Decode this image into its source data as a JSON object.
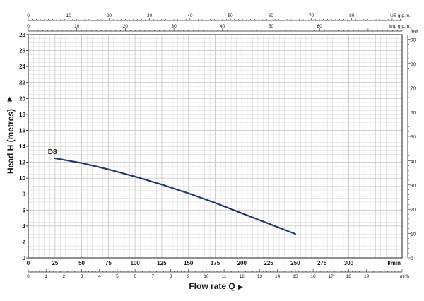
{
  "chart_data": {
    "type": "line",
    "xlabel": "Flow rate Q",
    "ylabel": "Head H (metres)",
    "xlim": [
      0,
      350
    ],
    "ylim": [
      0,
      28
    ],
    "grid": true,
    "x_unit": "l/min",
    "series": [
      {
        "name": "D8",
        "x": [
          25,
          50,
          75,
          100,
          125,
          150,
          175,
          200,
          225,
          250
        ],
        "y": [
          12.5,
          11.9,
          11.1,
          10.2,
          9.2,
          8.1,
          6.9,
          5.6,
          4.3,
          3.0
        ]
      }
    ],
    "top_axes": [
      {
        "unit": "US g.p.m.",
        "range": [
          0,
          92.46
        ],
        "ticks": [
          0,
          10,
          20,
          30,
          40,
          50,
          60,
          70,
          80
        ]
      },
      {
        "unit": "Imp g.p.m.",
        "range": [
          0,
          77.0
        ],
        "ticks": [
          0,
          10,
          20,
          30,
          40,
          50,
          60
        ]
      }
    ],
    "bottom_axis_m3h": {
      "unit": "m³/h",
      "range": [
        0,
        21
      ],
      "ticks": [
        0,
        1,
        2,
        3,
        4,
        5,
        6,
        7,
        8,
        9,
        10,
        11,
        12,
        13,
        14,
        15,
        16,
        17,
        18,
        19
      ]
    },
    "right_axis_feet": {
      "unit": "feet",
      "range": [
        0,
        91.86
      ],
      "ticks": [
        0,
        10,
        20,
        30,
        40,
        50,
        60,
        70,
        80,
        90
      ]
    },
    "x_ticks": [
      0,
      25,
      50,
      75,
      100,
      125,
      150,
      175,
      200,
      225,
      250,
      275,
      300
    ],
    "y_ticks": [
      0,
      2,
      4,
      6,
      8,
      10,
      12,
      14,
      16,
      18,
      20,
      22,
      24,
      26,
      28
    ],
    "colors": {
      "curve": "#1f3a6b",
      "grid": "#c9c9c9",
      "axis": "#222222"
    }
  }
}
